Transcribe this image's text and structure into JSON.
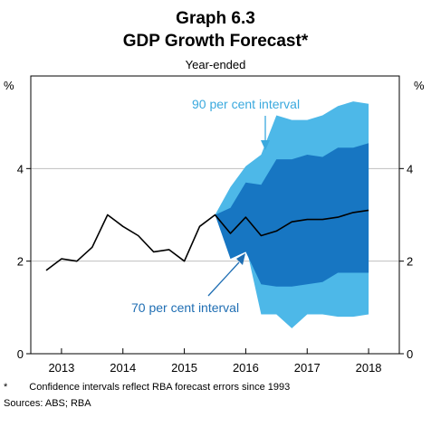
{
  "chart_data": {
    "type": "line",
    "title": "Graph 6.3",
    "subtitle": "GDP Growth Forecast*",
    "caption": "Year-ended",
    "ylabel_left": "%",
    "ylabel_right": "%",
    "ylim": [
      0,
      6
    ],
    "yticks": [
      "0",
      "2",
      "4"
    ],
    "x_categories": [
      "2013",
      "2014",
      "2015",
      "2016",
      "2017",
      "2018"
    ],
    "xlim": [
      2012.5,
      2018.5
    ],
    "grid": "horizontal",
    "colors": {
      "line": "#000000",
      "interval_90": "#4db8e8",
      "interval_70": "#1776c2",
      "annotation_90": "#3aa9de",
      "annotation_70": "#1f6eb3",
      "grid": "#bfbfbf",
      "axis": "#000000"
    },
    "series": [
      {
        "values": [
          [
            2012.75,
            1.8
          ],
          [
            2013.0,
            2.05
          ],
          [
            2013.25,
            2.0
          ],
          [
            2013.5,
            2.3
          ],
          [
            2013.75,
            3.0
          ],
          [
            2014.0,
            2.75
          ],
          [
            2014.25,
            2.55
          ],
          [
            2014.5,
            2.2
          ],
          [
            2014.75,
            2.25
          ],
          [
            2015.0,
            2.0
          ],
          [
            2015.25,
            2.75
          ],
          [
            2015.5,
            3.0
          ],
          [
            2015.75,
            2.6
          ],
          [
            2016.0,
            2.95
          ],
          [
            2016.25,
            2.55
          ],
          [
            2016.5,
            2.65
          ],
          [
            2016.75,
            2.85
          ],
          [
            2017.0,
            2.9
          ],
          [
            2017.25,
            2.9
          ],
          [
            2017.5,
            2.95
          ],
          [
            2017.75,
            3.05
          ],
          [
            2018.0,
            3.1
          ]
        ]
      }
    ],
    "interval_90": {
      "label": "90 per cent interval",
      "x": [
        2015.5,
        2015.75,
        2016.0,
        2016.25,
        2016.5,
        2016.75,
        2017.0,
        2017.25,
        2017.5,
        2017.75,
        2018.0
      ],
      "upper": [
        3.0,
        3.6,
        4.05,
        4.3,
        5.15,
        5.05,
        5.05,
        5.15,
        5.35,
        5.45,
        5.4
      ],
      "lower": [
        3.0,
        2.4,
        2.35,
        0.85,
        0.85,
        0.55,
        0.85,
        0.85,
        0.8,
        0.8,
        0.85
      ]
    },
    "interval_70": {
      "label": "70 per cent interval",
      "x": [
        2015.5,
        2015.75,
        2016.0,
        2016.25,
        2016.5,
        2016.75,
        2017.0,
        2017.25,
        2017.5,
        2017.75,
        2018.0
      ],
      "upper": [
        3.0,
        3.15,
        3.7,
        3.65,
        4.2,
        4.2,
        4.3,
        4.25,
        4.45,
        4.45,
        4.55
      ],
      "lower": [
        3.0,
        2.05,
        2.2,
        1.5,
        1.45,
        1.45,
        1.5,
        1.55,
        1.75,
        1.75,
        1.75
      ]
    }
  },
  "notes": {
    "footnote_marker": "*",
    "footnote": "Confidence intervals reflect RBA forecast errors since 1993",
    "sources": "Sources:  ABS; RBA"
  }
}
